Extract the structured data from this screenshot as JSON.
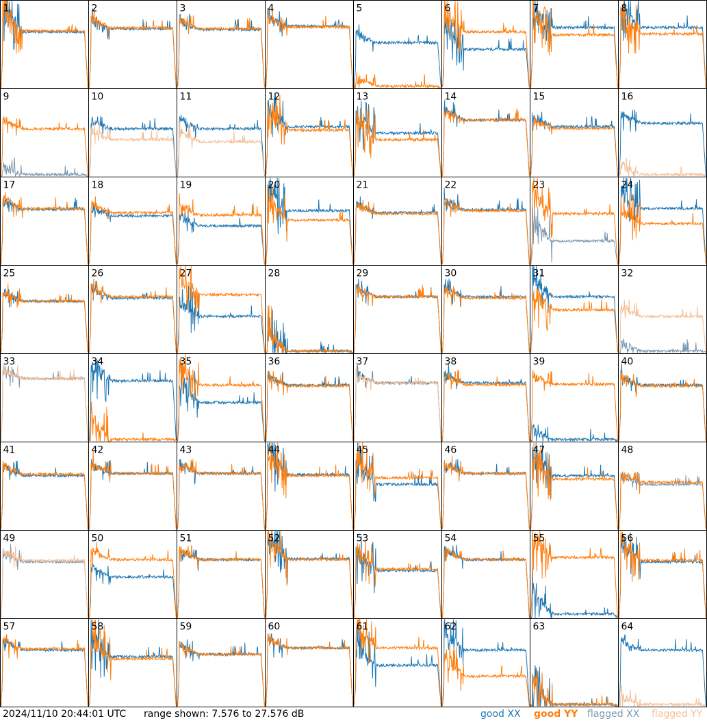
{
  "chart_data": {
    "type": "line",
    "title": "",
    "xlabel": "",
    "ylabel": "",
    "ylim": [
      7.576,
      27.576
    ],
    "grid": false,
    "layout": "8x8 small multiples",
    "colors": {
      "good_xx": "#1f77b4",
      "good_yy": "#ff7f0e",
      "flagged_xx": "#7b98b0",
      "flagged_yy": "#f5bf96"
    },
    "panels": [
      {
        "id": "1",
        "xx": "good",
        "yy": "good",
        "xx_level": 20.5,
        "yy_level": 20.7,
        "spikes": "strong"
      },
      {
        "id": "2",
        "xx": "good",
        "yy": "good",
        "xx_level": 21.2,
        "yy_level": 21.4,
        "spikes": "medium"
      },
      {
        "id": "3",
        "xx": "good",
        "yy": "good",
        "xx_level": 21.0,
        "yy_level": 21.2,
        "spikes": "medium"
      },
      {
        "id": "4",
        "xx": "good",
        "yy": "good",
        "xx_level": 21.8,
        "yy_level": 21.6,
        "spikes": "medium"
      },
      {
        "id": "5",
        "xx": "good",
        "yy": "good",
        "xx_level": 18.0,
        "yy_level": 8.0,
        "spikes": "medium"
      },
      {
        "id": "6",
        "xx": "good",
        "yy": "good",
        "xx_level": 16.5,
        "yy_level": 20.5,
        "spikes": "strong"
      },
      {
        "id": "7",
        "xx": "good",
        "yy": "good",
        "xx_level": 21.5,
        "yy_level": 19.8,
        "spikes": "strong"
      },
      {
        "id": "8",
        "xx": "good",
        "yy": "good",
        "xx_level": 21.5,
        "yy_level": 20.0,
        "spikes": "strong"
      },
      {
        "id": "9",
        "xx": "flagged",
        "yy": "good",
        "xx_level": 8.0,
        "yy_level": 18.5,
        "spikes": "medium"
      },
      {
        "id": "10",
        "xx": "good",
        "yy": "flagged",
        "xx_level": 18.5,
        "yy_level": 16.0,
        "spikes": "medium"
      },
      {
        "id": "11",
        "xx": "good",
        "yy": "flagged",
        "xx_level": 18.5,
        "yy_level": 15.5,
        "spikes": "medium"
      },
      {
        "id": "12",
        "xx": "good",
        "yy": "good",
        "xx_level": 19.0,
        "yy_level": 18.2,
        "spikes": "strong"
      },
      {
        "id": "13",
        "xx": "good",
        "yy": "good",
        "xx_level": 17.5,
        "yy_level": 16.0,
        "spikes": "strong"
      },
      {
        "id": "14",
        "xx": "good",
        "yy": "good",
        "xx_level": 20.5,
        "yy_level": 20.5,
        "spikes": "medium"
      },
      {
        "id": "15",
        "xx": "good",
        "yy": "good",
        "xx_level": 19.0,
        "yy_level": 18.6,
        "spikes": "medium"
      },
      {
        "id": "16",
        "xx": "good",
        "yy": "flagged",
        "xx_level": 19.8,
        "yy_level": 8.0,
        "spikes": "medium"
      },
      {
        "id": "17",
        "xx": "good",
        "yy": "good",
        "xx_level": 20.3,
        "yy_level": 20.5,
        "spikes": "medium"
      },
      {
        "id": "18",
        "xx": "good",
        "yy": "good",
        "xx_level": 18.8,
        "yy_level": 19.5,
        "spikes": "medium"
      },
      {
        "id": "19",
        "xx": "good",
        "yy": "good",
        "xx_level": 16.5,
        "yy_level": 19.0,
        "spikes": "medium"
      },
      {
        "id": "20",
        "xx": "good",
        "yy": "good",
        "xx_level": 20.0,
        "yy_level": 17.8,
        "spikes": "strong"
      },
      {
        "id": "21",
        "xx": "good",
        "yy": "good",
        "xx_level": 19.5,
        "yy_level": 19.3,
        "spikes": "medium"
      },
      {
        "id": "22",
        "xx": "good",
        "yy": "good",
        "xx_level": 20.2,
        "yy_level": 20.0,
        "spikes": "medium"
      },
      {
        "id": "23",
        "xx": "flagged",
        "yy": "good",
        "xx_level": 13.0,
        "yy_level": 19.3,
        "spikes": "strong"
      },
      {
        "id": "24",
        "xx": "good",
        "yy": "good",
        "xx_level": 20.5,
        "yy_level": 17.0,
        "spikes": "strong"
      },
      {
        "id": "25",
        "xx": "good",
        "yy": "good",
        "xx_level": 19.5,
        "yy_level": 19.5,
        "spikes": "medium"
      },
      {
        "id": "26",
        "xx": "good",
        "yy": "good",
        "xx_level": 20.2,
        "yy_level": 20.5,
        "spikes": "medium"
      },
      {
        "id": "27",
        "xx": "good",
        "yy": "good",
        "xx_level": 16.0,
        "yy_level": 21.0,
        "spikes": "strong"
      },
      {
        "id": "28",
        "xx": "good",
        "yy": "good",
        "xx_level": 8.0,
        "yy_level": 8.0,
        "spikes": "strong"
      },
      {
        "id": "29",
        "xx": "good",
        "yy": "good",
        "xx_level": 20.5,
        "yy_level": 20.5,
        "spikes": "medium"
      },
      {
        "id": "30",
        "xx": "good",
        "yy": "good",
        "xx_level": 20.5,
        "yy_level": 20.2,
        "spikes": "medium"
      },
      {
        "id": "31",
        "xx": "good",
        "yy": "good",
        "xx_level": 20.5,
        "yy_level": 17.5,
        "spikes": "strong"
      },
      {
        "id": "32",
        "xx": "flagged",
        "yy": "flagged",
        "xx_level": 8.0,
        "yy_level": 16.0,
        "spikes": "medium"
      },
      {
        "id": "33",
        "xx": "flagged",
        "yy": "flagged",
        "xx_level": 22.0,
        "yy_level": 22.0,
        "spikes": "medium"
      },
      {
        "id": "34",
        "xx": "good",
        "yy": "good",
        "xx_level": 21.5,
        "yy_level": 8.0,
        "spikes": "strong"
      },
      {
        "id": "35",
        "xx": "good",
        "yy": "good",
        "xx_level": 16.5,
        "yy_level": 20.5,
        "spikes": "strong"
      },
      {
        "id": "36",
        "xx": "good",
        "yy": "good",
        "xx_level": 20.5,
        "yy_level": 20.3,
        "spikes": "medium"
      },
      {
        "id": "37",
        "xx": "good",
        "yy": "flagged",
        "xx_level": 21.0,
        "yy_level": 21.0,
        "spikes": "medium"
      },
      {
        "id": "38",
        "xx": "good",
        "yy": "good",
        "xx_level": 21.0,
        "yy_level": 20.6,
        "spikes": "medium"
      },
      {
        "id": "39",
        "xx": "good",
        "yy": "good",
        "xx_level": 8.0,
        "yy_level": 20.7,
        "spikes": "medium"
      },
      {
        "id": "40",
        "xx": "good",
        "yy": "good",
        "xx_level": 20.5,
        "yy_level": 20.3,
        "spikes": "medium"
      },
      {
        "id": "41",
        "xx": "good",
        "yy": "good",
        "xx_level": 20.0,
        "yy_level": 20.3,
        "spikes": "medium"
      },
      {
        "id": "42",
        "xx": "good",
        "yy": "good",
        "xx_level": 20.5,
        "yy_level": 20.5,
        "spikes": "medium"
      },
      {
        "id": "43",
        "xx": "good",
        "yy": "good",
        "xx_level": 20.5,
        "yy_level": 20.5,
        "spikes": "medium"
      },
      {
        "id": "44",
        "xx": "good",
        "yy": "good",
        "xx_level": 20.2,
        "yy_level": 20.0,
        "spikes": "strong"
      },
      {
        "id": "45",
        "xx": "good",
        "yy": "good",
        "xx_level": 18.0,
        "yy_level": 19.5,
        "spikes": "strong"
      },
      {
        "id": "46",
        "xx": "good",
        "yy": "good",
        "xx_level": 20.5,
        "yy_level": 20.5,
        "spikes": "medium"
      },
      {
        "id": "47",
        "xx": "good",
        "yy": "good",
        "xx_level": 20.0,
        "yy_level": 19.2,
        "spikes": "strong"
      },
      {
        "id": "48",
        "xx": "flagged",
        "yy": "good",
        "xx_level": 18.0,
        "yy_level": 18.5,
        "spikes": "medium"
      },
      {
        "id": "49",
        "xx": "flagged",
        "yy": "flagged",
        "xx_level": 20.5,
        "yy_level": 20.8,
        "spikes": "medium"
      },
      {
        "id": "50",
        "xx": "good",
        "yy": "good",
        "xx_level": 17.0,
        "yy_level": 21.0,
        "spikes": "medium"
      },
      {
        "id": "51",
        "xx": "good",
        "yy": "good",
        "xx_level": 21.0,
        "yy_level": 21.0,
        "spikes": "medium"
      },
      {
        "id": "52",
        "xx": "good",
        "yy": "good",
        "xx_level": 21.2,
        "yy_level": 21.0,
        "spikes": "strong"
      },
      {
        "id": "53",
        "xx": "good",
        "yy": "good",
        "xx_level": 18.5,
        "yy_level": 18.8,
        "spikes": "strong"
      },
      {
        "id": "54",
        "xx": "good",
        "yy": "good",
        "xx_level": 21.0,
        "yy_level": 21.0,
        "spikes": "medium"
      },
      {
        "id": "55",
        "xx": "good",
        "yy": "good",
        "xx_level": 8.5,
        "yy_level": 21.5,
        "spikes": "strong"
      },
      {
        "id": "56",
        "xx": "good",
        "yy": "good",
        "xx_level": 20.5,
        "yy_level": 20.8,
        "spikes": "strong"
      },
      {
        "id": "57",
        "xx": "good",
        "yy": "good",
        "xx_level": 20.5,
        "yy_level": 20.8,
        "spikes": "medium"
      },
      {
        "id": "58",
        "xx": "good",
        "yy": "good",
        "xx_level": 19.0,
        "yy_level": 18.5,
        "spikes": "strong"
      },
      {
        "id": "59",
        "xx": "good",
        "yy": "good",
        "xx_level": 19.5,
        "yy_level": 19.5,
        "spikes": "medium"
      },
      {
        "id": "60",
        "xx": "good",
        "yy": "good",
        "xx_level": 21.0,
        "yy_level": 21.0,
        "spikes": "medium"
      },
      {
        "id": "61",
        "xx": "good",
        "yy": "good",
        "xx_level": 17.0,
        "yy_level": 21.0,
        "spikes": "strong"
      },
      {
        "id": "62",
        "xx": "good",
        "yy": "good",
        "xx_level": 20.5,
        "yy_level": 14.5,
        "spikes": "strong"
      },
      {
        "id": "63",
        "xx": "good",
        "yy": "good",
        "xx_level": 8.0,
        "yy_level": 8.0,
        "spikes": "strong"
      },
      {
        "id": "64",
        "xx": "good",
        "yy": "flagged",
        "xx_level": 20.5,
        "yy_level": 8.0,
        "spikes": "medium"
      }
    ]
  },
  "footer": {
    "timestamp": "2024/11/10 20:44:01 UTC",
    "range_text": "range shown: 7.576 to 27.576 dB",
    "legend": {
      "good": "good",
      "flagged": "flagged",
      "xx": "XX",
      "yy": "YY"
    }
  }
}
